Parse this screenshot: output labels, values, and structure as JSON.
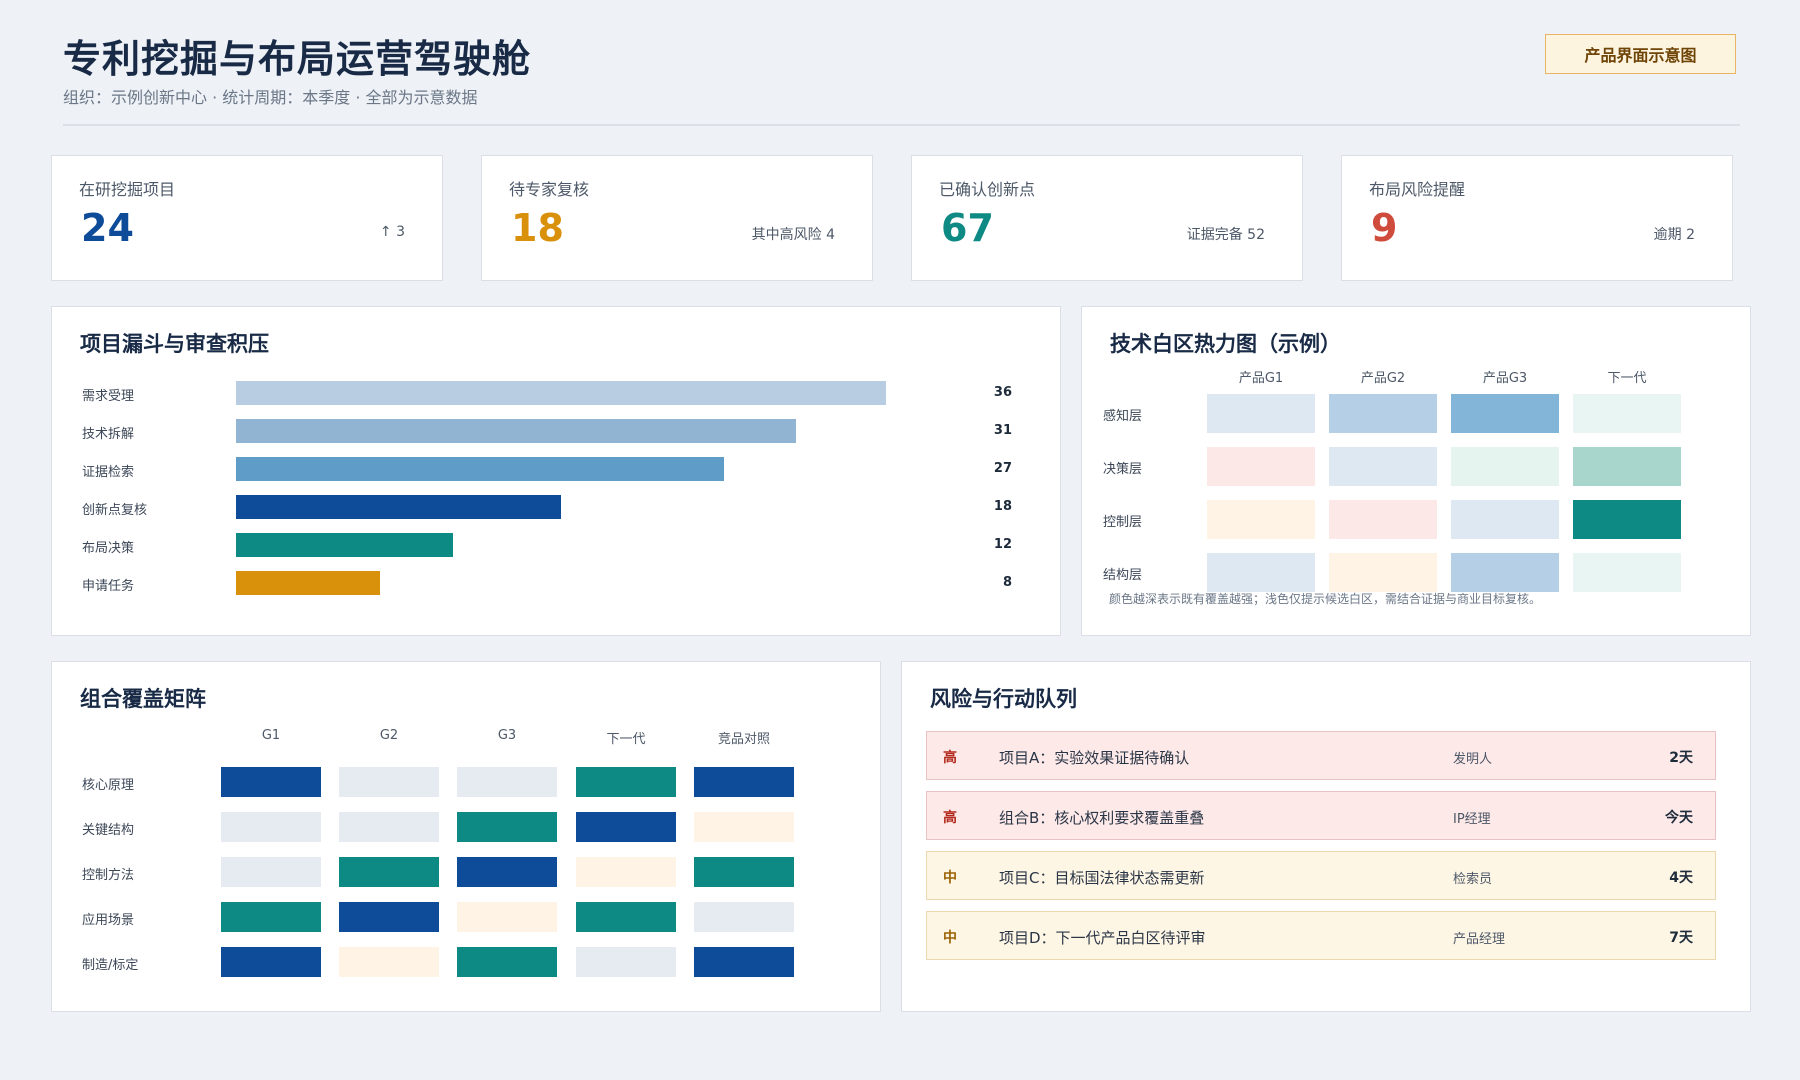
{
  "header": {
    "title": "专利挖掘与布局运营驾驶舱",
    "subtitle": "组织：示例创新中心 · 统计周期：本季度 · 全部为示意数据",
    "badge": "产品界面示意图"
  },
  "stats": [
    {
      "label": "在研挖掘项目",
      "value": "24",
      "note": "↑ 3",
      "color": "#0e4c9a"
    },
    {
      "label": "待专家复核",
      "value": "18",
      "note": "其中高风险 4",
      "color": "#d9900b"
    },
    {
      "label": "已确认创新点",
      "value": "67",
      "note": "证据完备 52",
      "color": "#0e8a84"
    },
    {
      "label": "布局风险提醒",
      "value": "9",
      "note": "逾期 2",
      "color": "#cf4b3c"
    }
  ],
  "funnel": {
    "title": "项目漏斗与审查积压",
    "chart_data": {
      "type": "bar",
      "categories": [
        "需求受理",
        "技术拆解",
        "证据检索",
        "创新点复核",
        "布局决策",
        "申请任务"
      ],
      "values": [
        36,
        31,
        27,
        18,
        12,
        8
      ],
      "colors": [
        "#b8cde2",
        "#91b4d3",
        "#5f9cc8",
        "#0e4c9a",
        "#0e8a84",
        "#d9900b"
      ],
      "xlim": [
        0,
        36
      ]
    }
  },
  "heatmap": {
    "title": "技术白区热力图（示例）",
    "columns": [
      "产品G1",
      "产品G2",
      "产品G3",
      "下一代"
    ],
    "rows": [
      "感知层",
      "决策层",
      "控制层",
      "结构层"
    ],
    "cells": [
      [
        "#dde8f2",
        "#b5d0e6",
        "#83b5d9",
        "#e9f5f2"
      ],
      [
        "#fce8e7",
        "#dde8f2",
        "#e6f4f0",
        "#a8d6cc"
      ],
      [
        "#fef3e4",
        "#fce8e7",
        "#dde8f2",
        "#0e8a84"
      ],
      [
        "#dde8f2",
        "#fef3e4",
        "#b5d0e6",
        "#e9f5f2"
      ]
    ],
    "note": "颜色越深表示既有覆盖越强；浅色仅提示候选白区，需结合证据与商业目标复核。"
  },
  "matrix": {
    "title": "组合覆盖矩阵",
    "columns": [
      "G1",
      "G2",
      "G3",
      "下一代",
      "竞品对照"
    ],
    "rows": [
      "核心原理",
      "关键结构",
      "控制方法",
      "应用场景",
      "制造/标定"
    ],
    "cells": [
      [
        "#0e4c9a",
        "#e6ebf2",
        "#e6ebf2",
        "#0e8a84",
        "#0e4c9a"
      ],
      [
        "#e6ebf2",
        "#e6ebf2",
        "#0e8a84",
        "#0e4c9a",
        "#fef3e4"
      ],
      [
        "#e6ebf2",
        "#0e8a84",
        "#0e4c9a",
        "#fef3e4",
        "#0e8a84"
      ],
      [
        "#0e8a84",
        "#0e4c9a",
        "#fef3e4",
        "#0e8a84",
        "#e6ebf2"
      ],
      [
        "#0e4c9a",
        "#fef3e4",
        "#0e8a84",
        "#e6ebf2",
        "#0e4c9a"
      ]
    ]
  },
  "risks": {
    "title": "风险与行动队列",
    "items": [
      {
        "level": "高",
        "text": "项目A：实验效果证据待确认",
        "owner": "发明人",
        "due": "2天",
        "bg": "#fce9e8",
        "border": "#e8c3c3",
        "level_color": "#b22a1d"
      },
      {
        "level": "高",
        "text": "组合B：核心权利要求覆盖重叠",
        "owner": "IP经理",
        "due": "今天",
        "bg": "#fce9e8",
        "border": "#e8c3c3",
        "level_color": "#b22a1d"
      },
      {
        "level": "中",
        "text": "项目C：目标国法律状态需更新",
        "owner": "检索员",
        "due": "4天",
        "bg": "#fef6e5",
        "border": "#edd7ae",
        "level_color": "#9b6305"
      },
      {
        "level": "中",
        "text": "项目D：下一代产品白区待评审",
        "owner": "产品经理",
        "due": "7天",
        "bg": "#fef6e5",
        "border": "#edd7ae",
        "level_color": "#9b6305"
      }
    ]
  }
}
